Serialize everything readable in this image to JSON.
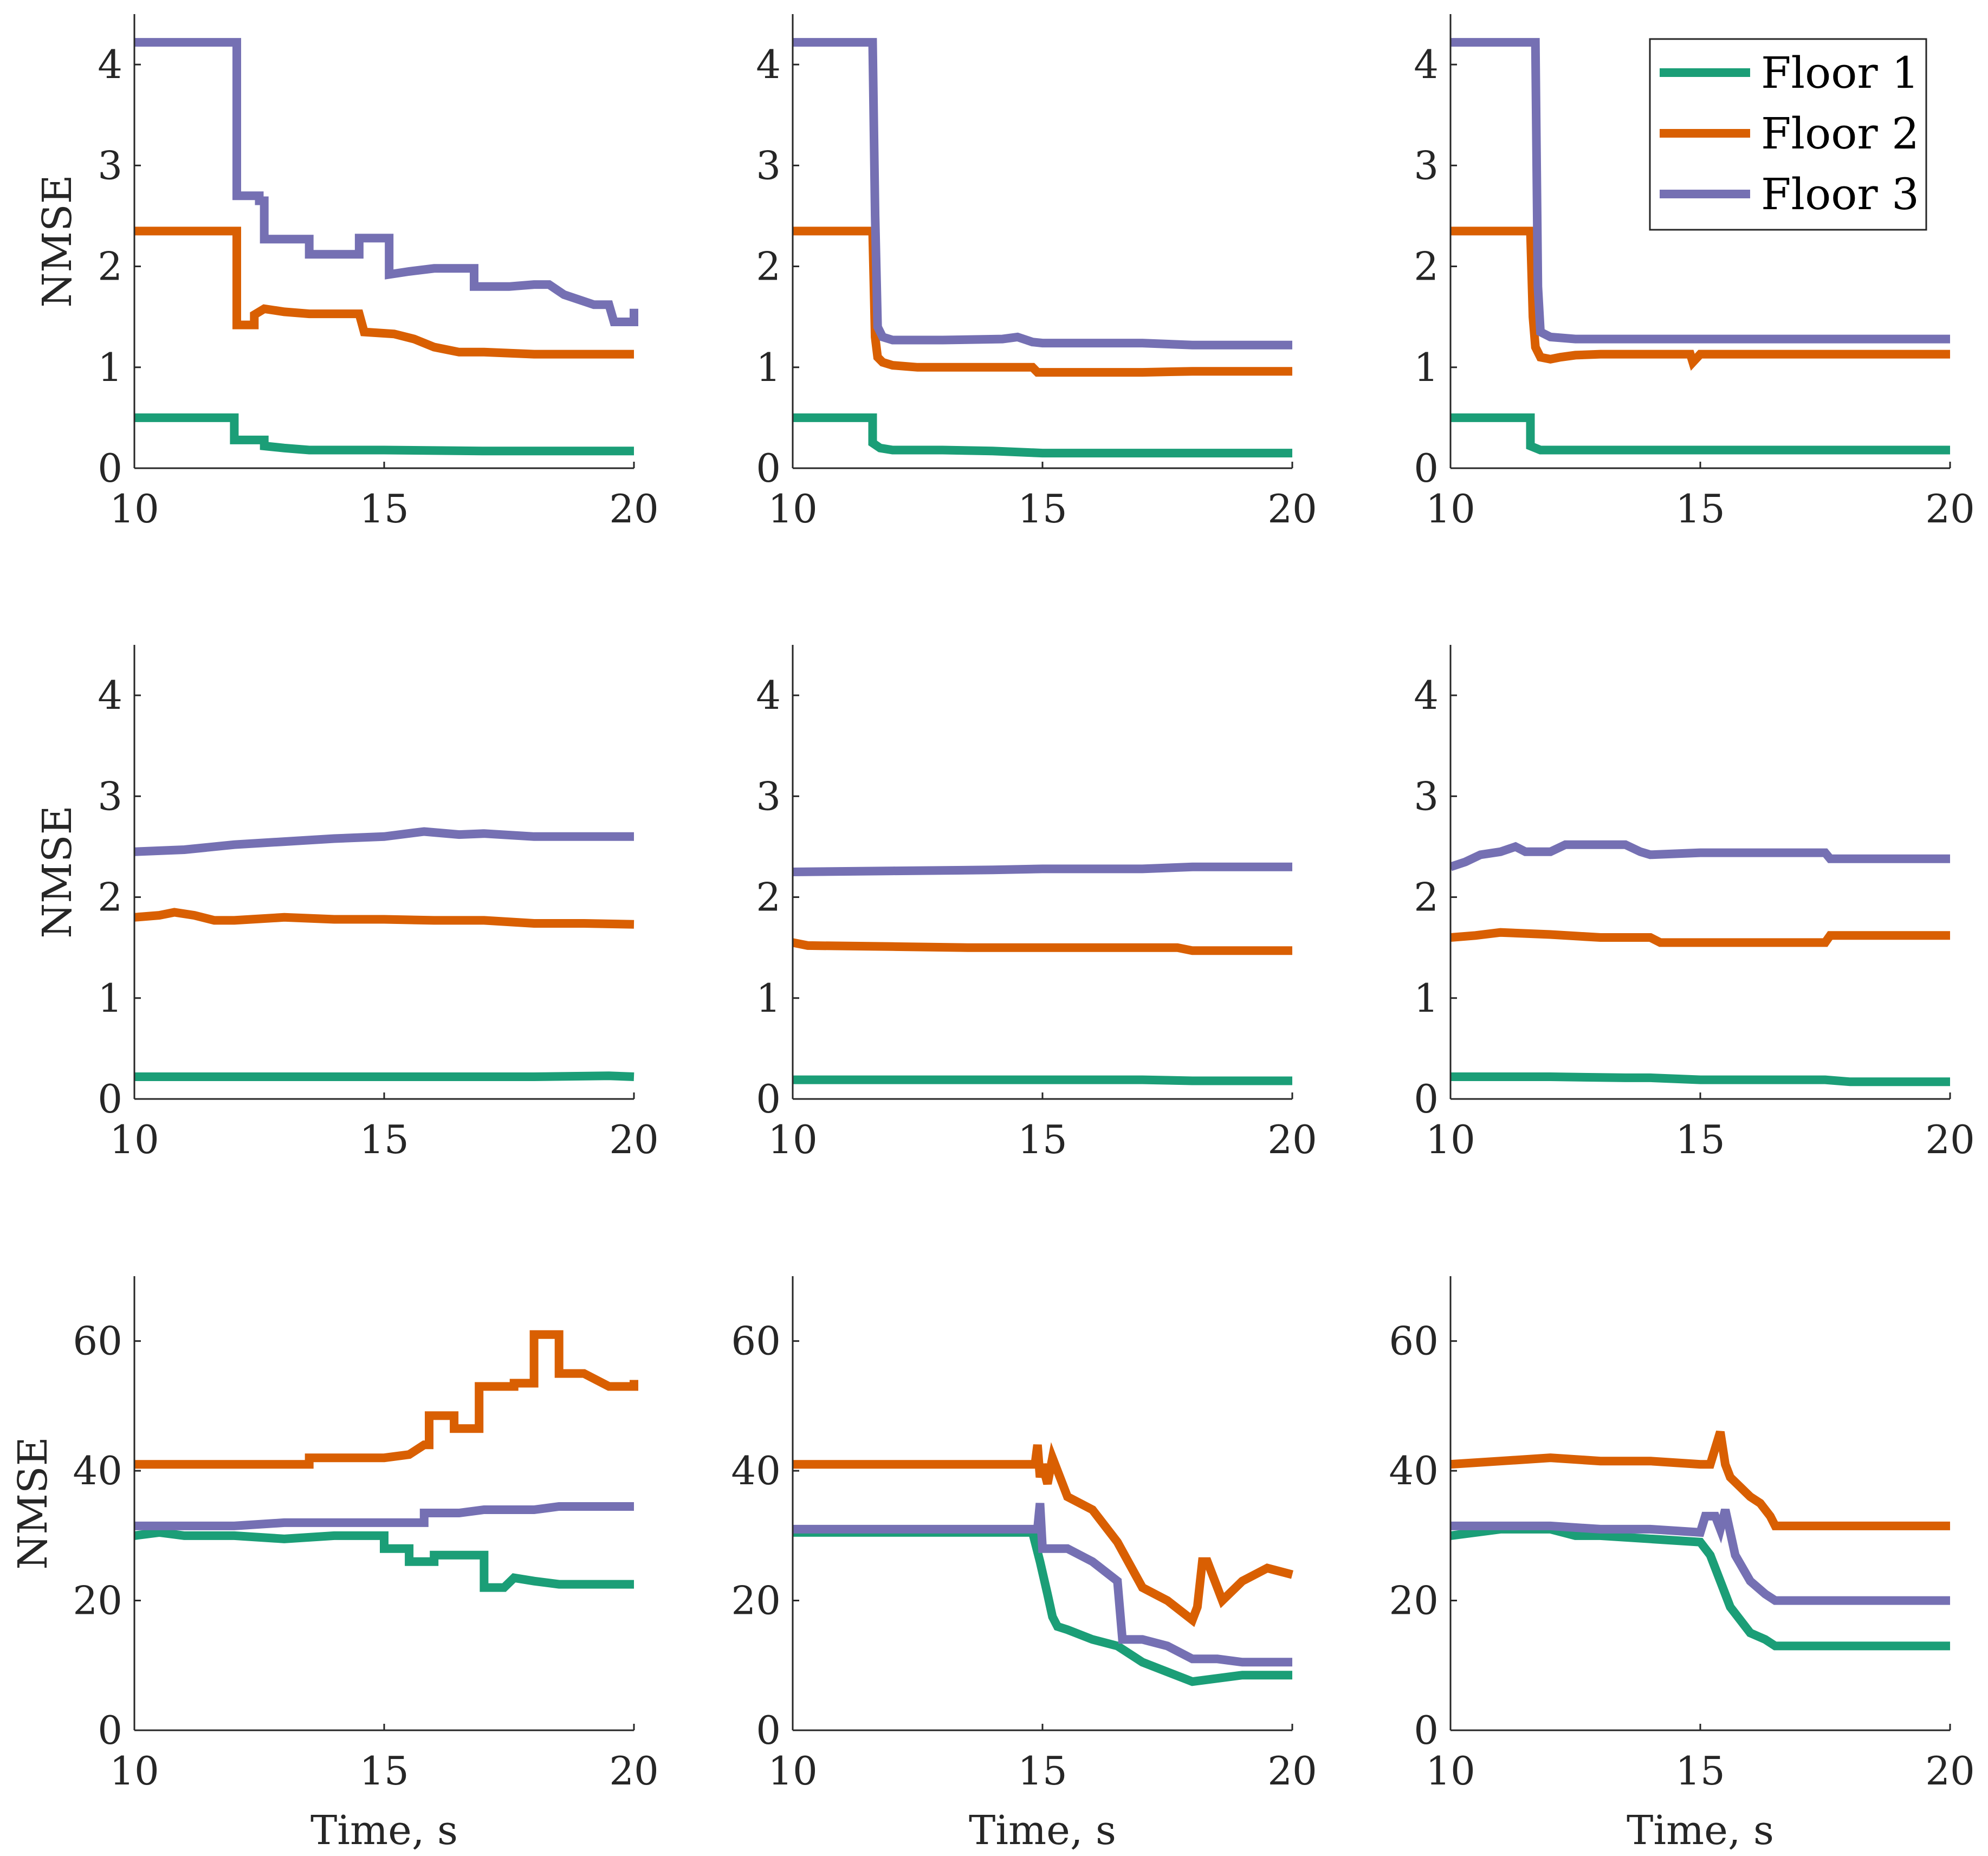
{
  "colors": {
    "floor1": "#1b9e77",
    "floor2": "#d95f02",
    "floor3": "#7570b3",
    "axis": "#262626"
  },
  "legend": {
    "entries": [
      "Floor 1",
      "Floor 2",
      "Floor 3"
    ]
  },
  "chart_data": [
    {
      "type": "line",
      "panel": "row1-col1",
      "xlabel": "",
      "ylabel": "NMSE",
      "xlim": [
        10,
        20
      ],
      "ylim": [
        0,
        4.5
      ],
      "xticks": [
        10,
        15,
        20
      ],
      "yticks": [
        0,
        1,
        2,
        3,
        4
      ],
      "series": [
        {
          "name": "Floor 1",
          "x": [
            10,
            12,
            12,
            12.6,
            12.6,
            13,
            13.5,
            15,
            17,
            20
          ],
          "y": [
            0.5,
            0.5,
            0.28,
            0.28,
            0.22,
            0.2,
            0.18,
            0.18,
            0.17,
            0.17
          ]
        },
        {
          "name": "Floor 2",
          "x": [
            10,
            12.05,
            12.05,
            12.4,
            12.4,
            12.6,
            13,
            13.5,
            14.2,
            14.5,
            14.6,
            15.2,
            15.6,
            16,
            16.5,
            17,
            18,
            20
          ],
          "y": [
            2.35,
            2.35,
            1.42,
            1.42,
            1.52,
            1.58,
            1.55,
            1.53,
            1.53,
            1.53,
            1.35,
            1.33,
            1.28,
            1.2,
            1.15,
            1.15,
            1.13,
            1.13
          ]
        },
        {
          "name": "Floor 3",
          "x": [
            10,
            12.05,
            12.05,
            12.5,
            12.5,
            12.6,
            12.6,
            13,
            13.5,
            13.5,
            14.3,
            14.5,
            14.5,
            14.9,
            14.9,
            15.1,
            15.1,
            15.5,
            16,
            16,
            16.8,
            16.8,
            17.5,
            18,
            18.3,
            18.6,
            19.2,
            19.5,
            19.6,
            20,
            20
          ],
          "y": [
            4.22,
            4.22,
            2.7,
            2.7,
            2.65,
            2.65,
            2.27,
            2.27,
            2.27,
            2.12,
            2.12,
            2.12,
            2.28,
            2.28,
            2.28,
            2.28,
            1.92,
            1.95,
            1.98,
            1.98,
            1.98,
            1.8,
            1.8,
            1.82,
            1.82,
            1.72,
            1.62,
            1.62,
            1.45,
            1.45,
            1.58
          ]
        }
      ]
    },
    {
      "type": "line",
      "panel": "row1-col2",
      "xlabel": "",
      "ylabel": "",
      "xlim": [
        10,
        20
      ],
      "ylim": [
        0,
        4.5
      ],
      "xticks": [
        10,
        15,
        20
      ],
      "yticks": [
        0,
        1,
        2,
        3,
        4
      ],
      "series": [
        {
          "name": "Floor 1",
          "x": [
            10,
            11.6,
            11.6,
            11.75,
            12,
            13,
            14,
            15,
            17,
            20
          ],
          "y": [
            0.5,
            0.5,
            0.25,
            0.2,
            0.18,
            0.18,
            0.17,
            0.15,
            0.15,
            0.15
          ]
        },
        {
          "name": "Floor 2",
          "x": [
            10,
            11.6,
            11.65,
            11.7,
            11.8,
            12,
            12.5,
            13,
            14,
            14.8,
            14.9,
            15,
            17,
            18,
            20
          ],
          "y": [
            2.35,
            2.35,
            1.3,
            1.1,
            1.05,
            1.02,
            1.0,
            1.0,
            1.0,
            1.0,
            0.95,
            0.95,
            0.95,
            0.96,
            0.96
          ]
        },
        {
          "name": "Floor 3",
          "x": [
            10,
            11.6,
            11.65,
            11.7,
            11.8,
            12,
            13,
            14.2,
            14.5,
            14.8,
            15,
            17,
            18,
            20
          ],
          "y": [
            4.22,
            4.22,
            2.5,
            1.4,
            1.3,
            1.27,
            1.27,
            1.28,
            1.3,
            1.25,
            1.24,
            1.24,
            1.22,
            1.22
          ]
        }
      ]
    },
    {
      "type": "line",
      "panel": "row1-col3",
      "xlabel": "",
      "ylabel": "",
      "xlim": [
        10,
        20
      ],
      "ylim": [
        0,
        4.5
      ],
      "xticks": [
        10,
        15,
        20
      ],
      "yticks": [
        0,
        1,
        2,
        3,
        4
      ],
      "series": [
        {
          "name": "Floor 1",
          "x": [
            10,
            11.6,
            11.6,
            11.8,
            13,
            15,
            20
          ],
          "y": [
            0.5,
            0.5,
            0.22,
            0.18,
            0.18,
            0.18,
            0.18
          ]
        },
        {
          "name": "Floor 2",
          "x": [
            10,
            11.6,
            11.65,
            11.7,
            11.8,
            12,
            12.2,
            12.5,
            13,
            14,
            14.8,
            14.85,
            15,
            16,
            20
          ],
          "y": [
            2.35,
            2.35,
            1.5,
            1.2,
            1.1,
            1.08,
            1.1,
            1.12,
            1.13,
            1.13,
            1.13,
            1.05,
            1.13,
            1.13,
            1.13
          ]
        },
        {
          "name": "Floor 3",
          "x": [
            10,
            11.7,
            11.75,
            11.8,
            12,
            12.5,
            13,
            15,
            17,
            20
          ],
          "y": [
            4.22,
            4.22,
            1.8,
            1.35,
            1.3,
            1.28,
            1.28,
            1.28,
            1.28,
            1.28
          ]
        }
      ]
    },
    {
      "type": "line",
      "panel": "row2-col1",
      "xlabel": "",
      "ylabel": "NMSE",
      "xlim": [
        10,
        20
      ],
      "ylim": [
        0,
        4.5
      ],
      "xticks": [
        10,
        15,
        20
      ],
      "yticks": [
        0,
        1,
        2,
        3,
        4
      ],
      "series": [
        {
          "name": "Floor 1",
          "x": [
            10,
            12,
            15,
            18,
            19.5,
            20
          ],
          "y": [
            0.22,
            0.22,
            0.22,
            0.22,
            0.23,
            0.22
          ]
        },
        {
          "name": "Floor 2",
          "x": [
            10,
            10.5,
            10.8,
            11.2,
            11.6,
            12,
            13,
            14,
            15,
            16,
            17,
            18,
            19,
            20
          ],
          "y": [
            1.8,
            1.82,
            1.85,
            1.82,
            1.77,
            1.77,
            1.8,
            1.78,
            1.78,
            1.77,
            1.77,
            1.74,
            1.74,
            1.73
          ]
        },
        {
          "name": "Floor 3",
          "x": [
            10,
            11,
            12,
            13,
            14,
            15,
            15.8,
            16.5,
            17,
            18,
            19,
            20
          ],
          "y": [
            2.45,
            2.47,
            2.52,
            2.55,
            2.58,
            2.6,
            2.65,
            2.62,
            2.63,
            2.6,
            2.6,
            2.6
          ]
        }
      ]
    },
    {
      "type": "line",
      "panel": "row2-col2",
      "xlabel": "",
      "ylabel": "",
      "xlim": [
        10,
        20
      ],
      "ylim": [
        0,
        4.5
      ],
      "xticks": [
        10,
        15,
        20
      ],
      "yticks": [
        0,
        1,
        2,
        3,
        4
      ],
      "series": [
        {
          "name": "Floor 1",
          "x": [
            10,
            13,
            15,
            17,
            18,
            20
          ],
          "y": [
            0.19,
            0.19,
            0.19,
            0.19,
            0.18,
            0.18
          ]
        },
        {
          "name": "Floor 2",
          "x": [
            10,
            10.3,
            12,
            13.5,
            15,
            17,
            17.7,
            18,
            20
          ],
          "y": [
            1.55,
            1.52,
            1.51,
            1.5,
            1.5,
            1.5,
            1.5,
            1.47,
            1.47
          ]
        },
        {
          "name": "Floor 3",
          "x": [
            10,
            12,
            14,
            15,
            16,
            17,
            18,
            20
          ],
          "y": [
            2.25,
            2.26,
            2.27,
            2.28,
            2.28,
            2.28,
            2.3,
            2.3
          ]
        }
      ]
    },
    {
      "type": "line",
      "panel": "row2-col3",
      "xlabel": "",
      "ylabel": "",
      "xlim": [
        10,
        20
      ],
      "ylim": [
        0,
        4.5
      ],
      "xticks": [
        10,
        15,
        20
      ],
      "yticks": [
        0,
        1,
        2,
        3,
        4
      ],
      "series": [
        {
          "name": "Floor 1",
          "x": [
            10,
            12,
            13.5,
            14,
            15,
            17,
            17.5,
            18,
            20
          ],
          "y": [
            0.22,
            0.22,
            0.21,
            0.21,
            0.19,
            0.19,
            0.19,
            0.17,
            0.17
          ]
        },
        {
          "name": "Floor 2",
          "x": [
            10,
            10.5,
            11,
            12,
            13,
            14,
            14.2,
            15,
            16,
            17,
            17.5,
            17.6,
            18,
            20
          ],
          "y": [
            1.6,
            1.62,
            1.65,
            1.63,
            1.6,
            1.6,
            1.55,
            1.55,
            1.55,
            1.55,
            1.55,
            1.62,
            1.62,
            1.62
          ]
        },
        {
          "name": "Floor 3",
          "x": [
            10,
            10.3,
            10.6,
            11,
            11.3,
            11.5,
            12,
            12.3,
            13,
            13.5,
            13.8,
            14,
            15,
            17,
            17.5,
            17.6,
            18,
            20
          ],
          "y": [
            2.3,
            2.35,
            2.42,
            2.45,
            2.5,
            2.45,
            2.45,
            2.52,
            2.52,
            2.52,
            2.45,
            2.42,
            2.44,
            2.44,
            2.44,
            2.38,
            2.38,
            2.38
          ]
        }
      ]
    },
    {
      "type": "line",
      "panel": "row3-col1",
      "xlabel": "Time, s",
      "ylabel": "NMSE",
      "xlim": [
        10,
        20
      ],
      "ylim": [
        0,
        70
      ],
      "xticks": [
        10,
        15,
        20
      ],
      "yticks": [
        0,
        20,
        40,
        60
      ],
      "series": [
        {
          "name": "Floor 1",
          "x": [
            10,
            10.5,
            11,
            12,
            13,
            14,
            14.5,
            15,
            15,
            15.5,
            15.5,
            16,
            16,
            17,
            17,
            17.4,
            17.6,
            18,
            18.5,
            19,
            20
          ],
          "y": [
            30,
            30.5,
            30,
            30,
            29.5,
            30,
            30,
            30,
            28,
            28,
            26,
            26,
            27,
            27,
            22,
            22,
            23.5,
            23,
            22.5,
            22.5,
            22.5
          ]
        },
        {
          "name": "Floor 2",
          "x": [
            10,
            12,
            13.5,
            13.5,
            14,
            15,
            15.5,
            15.8,
            15.9,
            15.9,
            16.4,
            16.4,
            16.9,
            16.9,
            17.6,
            17.6,
            18,
            18,
            18.5,
            18.5,
            19,
            19.5,
            20,
            20
          ],
          "y": [
            41,
            41,
            41,
            42,
            42,
            42,
            42.5,
            44,
            44,
            48.5,
            48.5,
            46.5,
            46.5,
            53,
            53,
            53.5,
            53.5,
            61,
            61,
            55,
            55,
            53,
            53,
            54
          ]
        },
        {
          "name": "Floor 3",
          "x": [
            10,
            11,
            12,
            13,
            14,
            15,
            15.5,
            15.8,
            15.8,
            16.5,
            17,
            18,
            18.5,
            20
          ],
          "y": [
            31.5,
            31.5,
            31.5,
            32,
            32,
            32,
            32,
            32,
            33.5,
            33.5,
            34,
            34,
            34.5,
            34.5
          ]
        }
      ]
    },
    {
      "type": "line",
      "panel": "row3-col2",
      "xlabel": "Time, s",
      "ylabel": "",
      "xlim": [
        10,
        20
      ],
      "ylim": [
        0,
        70
      ],
      "xticks": [
        10,
        15,
        20
      ],
      "yticks": [
        0,
        20,
        40,
        60
      ],
      "series": [
        {
          "name": "Floor 1",
          "x": [
            10,
            14.8,
            14.95,
            15.1,
            15.2,
            15.3,
            15.5,
            16,
            16.5,
            17,
            17.5,
            18,
            18.5,
            19,
            20
          ],
          "y": [
            30.5,
            30.5,
            26,
            21,
            17.5,
            16,
            15.5,
            14,
            13,
            10.5,
            9,
            7.5,
            8,
            8.5,
            8.5
          ]
        },
        {
          "name": "Floor 2",
          "x": [
            10,
            14.85,
            14.9,
            14.95,
            15,
            15.1,
            15.2,
            15.4,
            15.5,
            16,
            16.5,
            17,
            17.5,
            18,
            18.1,
            18.2,
            18.3,
            18.6,
            19,
            19.5,
            20
          ],
          "y": [
            41,
            41,
            44,
            39,
            41,
            38,
            42,
            38,
            36,
            34,
            29,
            22,
            20,
            17,
            19,
            26,
            26,
            20,
            23,
            25,
            24
          ]
        },
        {
          "name": "Floor 3",
          "x": [
            10,
            14.9,
            14.95,
            15,
            15.2,
            15.5,
            16,
            16.5,
            16.6,
            17,
            17.5,
            18,
            18.5,
            19,
            20
          ],
          "y": [
            31,
            31,
            35,
            28,
            28,
            28,
            26,
            23,
            14,
            14,
            13,
            11,
            11,
            10.5,
            10.5
          ]
        }
      ]
    },
    {
      "type": "line",
      "panel": "row3-col3",
      "xlabel": "Time, s",
      "ylabel": "",
      "xlim": [
        10,
        20
      ],
      "ylim": [
        0,
        70
      ],
      "xticks": [
        10,
        15,
        20
      ],
      "yticks": [
        0,
        20,
        40,
        60
      ],
      "series": [
        {
          "name": "Floor 1",
          "x": [
            10,
            11,
            12,
            12.5,
            13,
            14,
            15,
            15.2,
            15.4,
            15.6,
            15.8,
            16,
            16.3,
            16.5,
            17,
            18,
            20
          ],
          "y": [
            30,
            31,
            31,
            30,
            30,
            29.5,
            29,
            27,
            23,
            19,
            17,
            15,
            14,
            13,
            13,
            13,
            13
          ]
        },
        {
          "name": "Floor 2",
          "x": [
            10,
            11,
            12,
            13,
            14,
            15,
            15.2,
            15.4,
            15.5,
            15.6,
            16,
            16.2,
            16.4,
            16.5,
            17,
            20
          ],
          "y": [
            41,
            41.5,
            42,
            41.5,
            41.5,
            41,
            41,
            46,
            41,
            39,
            36,
            35,
            33,
            31.5,
            31.5,
            31.5
          ]
        },
        {
          "name": "Floor 3",
          "x": [
            10,
            11,
            12,
            13,
            14,
            15,
            15.1,
            15.3,
            15.4,
            15.5,
            15.7,
            16,
            16.3,
            16.5,
            17,
            20
          ],
          "y": [
            31.5,
            31.5,
            31.5,
            31,
            31,
            30.5,
            33,
            33,
            31,
            34,
            27,
            23,
            21,
            20,
            20,
            20
          ]
        }
      ]
    }
  ]
}
